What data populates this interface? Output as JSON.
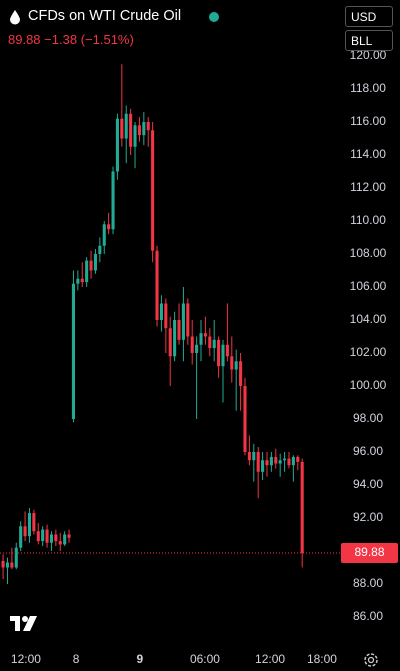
{
  "header": {
    "symbol_name": "CFDs on WTI Crude Oil",
    "price": "89.88",
    "change": "−1.38",
    "change_pct": "(−1.51%)",
    "currency": "USD",
    "unit": "BLL"
  },
  "chart_data": {
    "type": "candlestick",
    "up_color": "#22ab94",
    "down_color": "#f23645",
    "open": [
      89.4,
      89.0,
      89.3,
      89.0,
      90.2,
      91.5,
      90.9,
      92.3,
      91.2,
      90.6,
      91.3,
      90.5,
      91.0,
      90.6,
      90.4,
      91.0,
      98.0,
      106.2,
      106.5,
      106.3,
      107.6,
      107.0,
      108.0,
      108.5,
      109.8,
      109.5,
      113.0,
      116.2,
      115.0,
      116.5,
      114.5,
      115.8,
      115.2,
      116.0,
      115.5,
      108.2,
      104.0,
      105.0,
      103.5,
      101.8,
      104.0,
      102.8,
      105.0,
      103.0,
      102.0,
      102.5,
      103.2,
      103.0,
      102.3,
      102.8,
      101.2,
      102.5,
      101.8,
      101.0,
      101.5,
      100.0,
      96.0,
      95.5,
      96.0,
      94.8,
      95.5,
      95.2,
      95.7,
      95.3,
      95.5,
      95.6,
      95.2,
      95.7,
      95.4
    ],
    "high": [
      89.8,
      89.6,
      90.2,
      90.5,
      91.8,
      92.4,
      92.6,
      92.5,
      91.7,
      91.5,
      91.6,
      91.2,
      91.3,
      91.1,
      91.2,
      91.3,
      107.0,
      107.0,
      107.5,
      107.8,
      108.2,
      108.3,
      109.0,
      110.0,
      110.5,
      113.3,
      116.5,
      119.5,
      117.0,
      116.8,
      116.0,
      116.3,
      116.6,
      116.3,
      116.0,
      108.5,
      105.5,
      105.3,
      104.2,
      104.5,
      105.0,
      106.0,
      105.3,
      104.0,
      103.0,
      104.0,
      104.2,
      103.5,
      104.0,
      103.0,
      102.8,
      105.0,
      103.0,
      102.2,
      102.0,
      100.5,
      97.0,
      96.5,
      96.3,
      96.0,
      96.0,
      96.0,
      96.2,
      95.9,
      96.0,
      96.0,
      95.8,
      95.8,
      95.6
    ],
    "low": [
      88.3,
      88.0,
      88.9,
      88.9,
      90.0,
      90.6,
      90.5,
      91.0,
      90.4,
      90.3,
      90.2,
      90.0,
      90.3,
      90.0,
      90.3,
      90.5,
      97.8,
      105.8,
      106.0,
      106.0,
      106.5,
      106.8,
      107.5,
      108.0,
      109.2,
      109.2,
      112.5,
      114.5,
      113.5,
      114.0,
      113.2,
      114.8,
      114.6,
      114.5,
      107.5,
      103.6,
      103.3,
      102.0,
      100.0,
      101.5,
      102.5,
      101.5,
      102.5,
      101.3,
      98.0,
      101.5,
      102.5,
      101.8,
      101.5,
      100.5,
      99.0,
      101.5,
      100.2,
      98.5,
      98.5,
      95.8,
      95.2,
      94.2,
      93.2,
      94.3,
      94.5,
      94.8,
      95.0,
      94.5,
      94.8,
      95.0,
      94.2,
      94.9,
      89.0
    ],
    "close": [
      89.0,
      89.3,
      89.0,
      90.2,
      91.5,
      90.9,
      92.3,
      91.2,
      90.6,
      91.3,
      90.5,
      91.0,
      90.6,
      90.4,
      91.0,
      90.8,
      106.2,
      106.5,
      106.3,
      107.6,
      107.0,
      108.0,
      108.5,
      109.8,
      109.5,
      113.0,
      116.2,
      115.0,
      116.5,
      114.5,
      115.8,
      115.2,
      116.0,
      115.5,
      108.2,
      104.0,
      105.0,
      103.5,
      101.8,
      104.0,
      102.8,
      105.0,
      103.0,
      102.0,
      102.5,
      103.2,
      103.0,
      102.3,
      102.8,
      101.2,
      102.5,
      101.8,
      101.0,
      101.5,
      100.0,
      96.0,
      95.5,
      96.0,
      94.8,
      95.5,
      95.2,
      95.7,
      95.3,
      95.5,
      95.6,
      95.2,
      95.7,
      95.4,
      89.88
    ],
    "last_price": 89.88,
    "ylim": [
      84.5,
      120.5
    ],
    "yticks": [
      {
        "value": 86,
        "label": "86.00"
      },
      {
        "value": 88,
        "label": "88.00"
      },
      {
        "value": 90,
        "label": "90.00"
      },
      {
        "value": 92,
        "label": "92.00"
      },
      {
        "value": 94,
        "label": "94.00"
      },
      {
        "value": 96,
        "label": "96.00"
      },
      {
        "value": 98,
        "label": "98.00"
      },
      {
        "value": 100,
        "label": "100.00"
      },
      {
        "value": 102,
        "label": "102.00"
      },
      {
        "value": 104,
        "label": "104.00"
      },
      {
        "value": 106,
        "label": "106.00"
      },
      {
        "value": 108,
        "label": "108.00"
      },
      {
        "value": 110,
        "label": "110.00"
      },
      {
        "value": 112,
        "label": "112.00"
      },
      {
        "value": 114,
        "label": "114.00"
      },
      {
        "value": 116,
        "label": "116.00"
      },
      {
        "value": 118,
        "label": "118.00"
      },
      {
        "value": 120,
        "label": "120.00"
      }
    ],
    "xlim": [
      -0.7,
      76.6
    ],
    "xticks": [
      {
        "value": 5.2,
        "label": "12:00"
      },
      {
        "value": 16.6,
        "label": "8"
      },
      {
        "value": 31.1,
        "label": "9"
      },
      {
        "value": 45.9,
        "label": "06:00"
      },
      {
        "value": 60.7,
        "label": "12:00"
      },
      {
        "value": 72.5,
        "label": "18:00"
      }
    ]
  }
}
